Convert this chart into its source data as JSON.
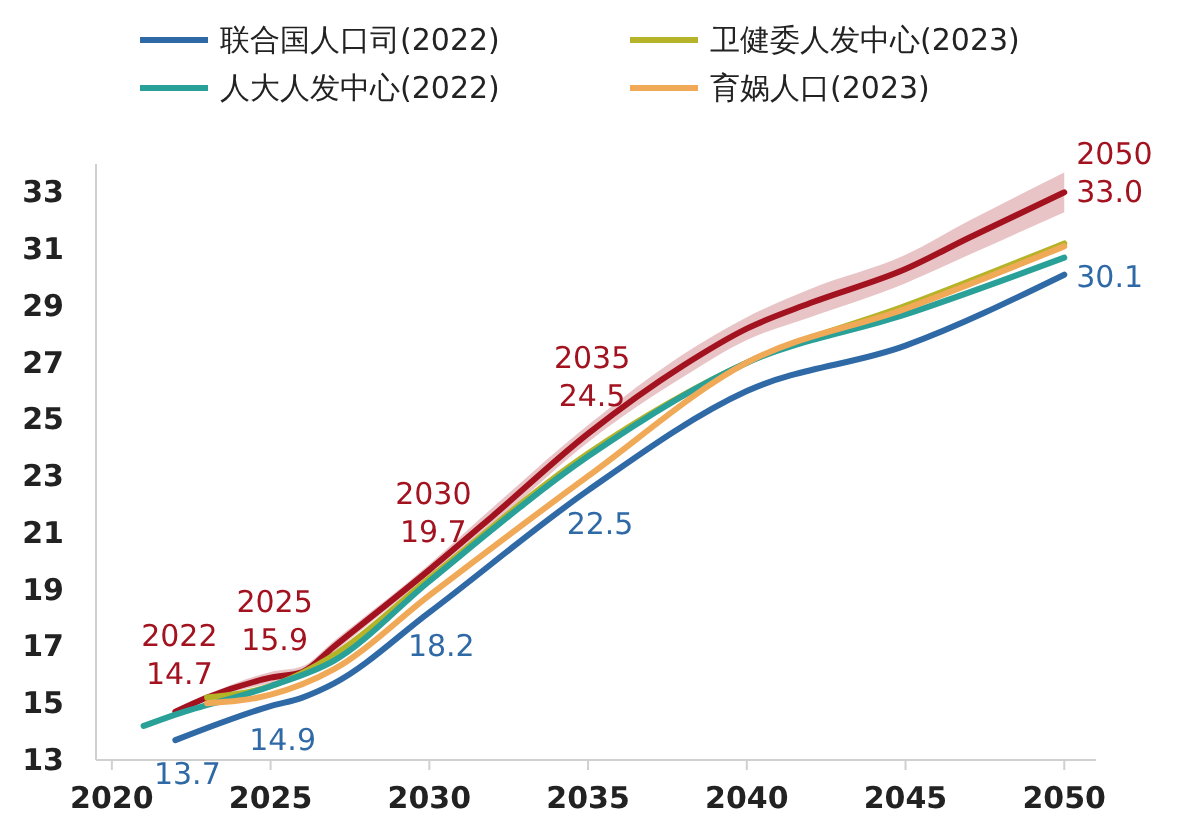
{
  "chart_data": {
    "type": "line",
    "xlim": [
      2019.5,
      2051
    ],
    "xticks": [
      2020,
      2025,
      2030,
      2035,
      2040,
      2045,
      2050
    ],
    "ylim": [
      13,
      34
    ],
    "yticks": [
      13,
      15,
      17,
      19,
      21,
      23,
      25,
      27,
      29,
      31,
      33
    ],
    "grid": false,
    "legend": "top",
    "line_style": "solid",
    "marker": "none",
    "series": [
      {
        "color": "#a3121f",
        "x": [
          2022,
          2023,
          2025,
          2026,
          2027,
          2030,
          2032,
          2035,
          2038,
          2040,
          2042,
          2045,
          2047,
          2050
        ],
        "values": [
          14.7,
          15.2,
          15.9,
          16.1,
          17.0,
          19.7,
          21.6,
          24.5,
          26.9,
          28.2,
          29.1,
          30.3,
          31.4,
          33.0
        ],
        "lower": [
          14.6,
          15.1,
          15.7,
          15.9,
          16.8,
          19.5,
          21.3,
          24.2,
          26.5,
          27.8,
          28.6,
          29.8,
          30.8,
          32.3
        ],
        "upper": [
          14.8,
          15.3,
          16.1,
          16.3,
          17.2,
          19.9,
          21.9,
          24.8,
          27.3,
          28.6,
          29.6,
          30.8,
          32.0,
          33.7
        ]
      },
      {
        "name": "联合国人口司(2022)",
        "color": "#2f6aa6",
        "x": [
          2022,
          2025,
          2026,
          2027,
          2030,
          2035,
          2040,
          2045,
          2050
        ],
        "values": [
          13.7,
          14.9,
          15.2,
          15.7,
          18.2,
          22.5,
          26.0,
          27.6,
          30.1
        ]
      },
      {
        "name": "卫健委人发中心(2023)",
        "color": "#b5b327",
        "x": [
          2023,
          2025,
          2027,
          2030,
          2035,
          2040,
          2045,
          2050
        ],
        "values": [
          15.2,
          15.6,
          16.7,
          19.4,
          23.8,
          27.0,
          29.0,
          31.2
        ]
      },
      {
        "name": "人大人发中心(2022)",
        "color": "#2aa198",
        "x": [
          2021,
          2022,
          2025,
          2027,
          2030,
          2035,
          2040,
          2045,
          2050
        ],
        "values": [
          14.2,
          14.6,
          15.6,
          16.5,
          19.3,
          23.7,
          27.0,
          28.7,
          30.7
        ]
      },
      {
        "name": "育娲人口(2023)",
        "color": "#f0a957",
        "x": [
          2023,
          2025,
          2027,
          2030,
          2035,
          2040,
          2045,
          2050
        ],
        "values": [
          15.0,
          15.3,
          16.2,
          18.8,
          23.0,
          27.0,
          28.9,
          31.1
        ]
      }
    ],
    "annotations": [
      {
        "text": "2022\n14.7",
        "x": 2022,
        "y": 14.7
      },
      {
        "text": "2025\n15.9",
        "x": 2025,
        "y": 15.9
      },
      {
        "text": "2030\n19.7",
        "x": 2030,
        "y": 19.7
      },
      {
        "text": "2035\n24.5",
        "x": 2035,
        "y": 24.5
      },
      {
        "text": "2050\n33.0",
        "x": 2050,
        "y": 33.0
      },
      {
        "text": "13.7",
        "x": 2022,
        "y": 13.7
      },
      {
        "text": "14.9",
        "x": 2025,
        "y": 14.9
      },
      {
        "text": "18.2",
        "x": 2030,
        "y": 18.2
      },
      {
        "text": "22.5",
        "x": 2035,
        "y": 22.5
      },
      {
        "text": "30.1",
        "x": 2050,
        "y": 30.1
      }
    ]
  }
}
